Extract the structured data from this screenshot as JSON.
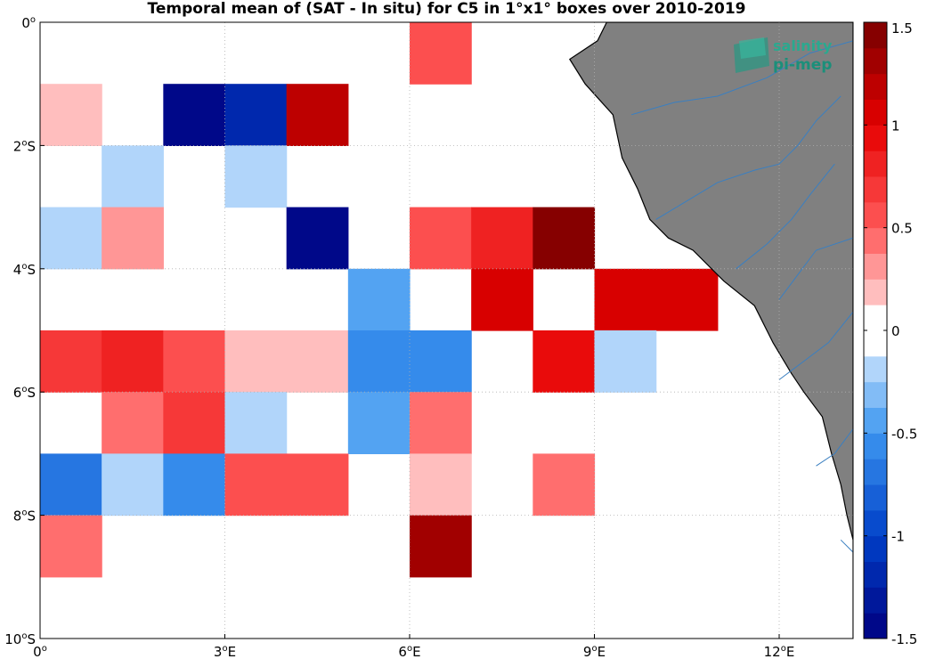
{
  "title": "Temporal mean of (SAT - In situ) for C5 in 1°x1° boxes over 2010-2019",
  "logo": {
    "line1": "salinity",
    "line2": "pi-mep"
  },
  "map": {
    "lon_range": [
      0,
      13.2
    ],
    "lat_range": [
      -10,
      0
    ],
    "land_color": "#808080",
    "river_color": "#3a7fc1",
    "grid": true,
    "x_ticks": [
      {
        "value": 0,
        "deg": "0",
        "hemi": ""
      },
      {
        "value": 3,
        "deg": "3",
        "hemi": "E"
      },
      {
        "value": 6,
        "deg": "6",
        "hemi": "E"
      },
      {
        "value": 9,
        "deg": "9",
        "hemi": "E"
      },
      {
        "value": 12,
        "deg": "12",
        "hemi": "E"
      }
    ],
    "y_ticks": [
      {
        "value": 0,
        "deg": "0",
        "hemi": ""
      },
      {
        "value": -2,
        "deg": "2",
        "hemi": "S"
      },
      {
        "value": -4,
        "deg": "4",
        "hemi": "S"
      },
      {
        "value": -6,
        "deg": "6",
        "hemi": "S"
      },
      {
        "value": -8,
        "deg": "8",
        "hemi": "S"
      },
      {
        "value": -10,
        "deg": "10",
        "hemi": "S"
      }
    ],
    "coastline": [
      [
        13.2,
        0
      ],
      [
        9.2,
        0
      ],
      [
        9.05,
        -0.3
      ],
      [
        8.6,
        -0.6
      ],
      [
        8.85,
        -1.0
      ],
      [
        9.3,
        -1.5
      ],
      [
        9.45,
        -2.2
      ],
      [
        9.7,
        -2.7
      ],
      [
        9.9,
        -3.2
      ],
      [
        10.2,
        -3.5
      ],
      [
        10.6,
        -3.7
      ],
      [
        11.1,
        -4.2
      ],
      [
        11.6,
        -4.6
      ],
      [
        11.9,
        -5.2
      ],
      [
        12.2,
        -5.7
      ],
      [
        12.4,
        -6.0
      ],
      [
        12.7,
        -6.4
      ],
      [
        12.85,
        -7.0
      ],
      [
        13.0,
        -7.5
      ],
      [
        13.1,
        -8.0
      ],
      [
        13.2,
        -8.4
      ]
    ],
    "rivers": [
      [
        [
          13.2,
          -0.3
        ],
        [
          12.5,
          -0.5
        ],
        [
          11.8,
          -0.9
        ],
        [
          11.0,
          -1.2
        ],
        [
          10.3,
          -1.3
        ],
        [
          9.6,
          -1.5
        ]
      ],
      [
        [
          13.0,
          -1.2
        ],
        [
          12.6,
          -1.6
        ],
        [
          12.3,
          -2.0
        ],
        [
          12.0,
          -2.3
        ],
        [
          11.6,
          -2.4
        ],
        [
          11.0,
          -2.6
        ],
        [
          10.5,
          -2.9
        ],
        [
          10.0,
          -3.2
        ]
      ],
      [
        [
          12.9,
          -2.3
        ],
        [
          12.5,
          -2.8
        ],
        [
          12.2,
          -3.2
        ],
        [
          11.8,
          -3.6
        ],
        [
          11.3,
          -4.0
        ]
      ],
      [
        [
          13.2,
          -3.5
        ],
        [
          12.6,
          -3.7
        ],
        [
          12.3,
          -4.1
        ],
        [
          12.0,
          -4.5
        ]
      ],
      [
        [
          13.2,
          -4.7
        ],
        [
          12.8,
          -5.2
        ],
        [
          12.4,
          -5.5
        ],
        [
          12.0,
          -5.8
        ]
      ],
      [
        [
          13.2,
          -6.6
        ],
        [
          12.9,
          -7.0
        ],
        [
          12.6,
          -7.2
        ]
      ],
      [
        [
          13.2,
          -8.6
        ],
        [
          13.0,
          -8.4
        ]
      ]
    ]
  },
  "chart_data": {
    "type": "heatmap",
    "title": "Temporal mean of (SAT - In situ) for C5 in 1°x1° boxes over 2010-2019",
    "colorbar": {
      "range": [
        -1.5,
        1.5
      ],
      "ticks": [
        {
          "value": 1.5,
          "label": "1.5"
        },
        {
          "value": 1,
          "label": "1"
        },
        {
          "value": 0.5,
          "label": "0.5"
        },
        {
          "value": 0,
          "label": "0"
        },
        {
          "value": -0.5,
          "label": "-0.5"
        },
        {
          "value": -1,
          "label": "-1"
        },
        {
          "value": -1.5,
          "label": "-1.5"
        }
      ]
    },
    "cells": [
      {
        "lon": 6,
        "lat": 0,
        "value": 0.55
      },
      {
        "lon": 0,
        "lat": -1,
        "value": 0.15
      },
      {
        "lon": 2,
        "lat": -1,
        "value": -1.45
      },
      {
        "lon": 3,
        "lat": -1,
        "value": -1.25
      },
      {
        "lon": 4,
        "lat": -1,
        "value": 1.15
      },
      {
        "lon": 1,
        "lat": -2,
        "value": -0.25
      },
      {
        "lon": 3,
        "lat": -2,
        "value": -0.25
      },
      {
        "lon": 0,
        "lat": -3,
        "value": -0.25
      },
      {
        "lon": 1,
        "lat": -3,
        "value": 0.25
      },
      {
        "lon": 4,
        "lat": -3,
        "value": -1.45
      },
      {
        "lon": 6,
        "lat": -3,
        "value": 0.55
      },
      {
        "lon": 7,
        "lat": -3,
        "value": 0.85
      },
      {
        "lon": 8,
        "lat": -3,
        "value": 1.45
      },
      {
        "lon": 5,
        "lat": -4,
        "value": -0.45
      },
      {
        "lon": 7,
        "lat": -4,
        "value": 1.05
      },
      {
        "lon": 9,
        "lat": -4,
        "value": 1.05
      },
      {
        "lon": 10,
        "lat": -4,
        "value": 1.05
      },
      {
        "lon": 0,
        "lat": -5,
        "value": 0.65
      },
      {
        "lon": 1,
        "lat": -5,
        "value": 0.75
      },
      {
        "lon": 2,
        "lat": -5,
        "value": 0.55
      },
      {
        "lon": 3,
        "lat": -5,
        "value": 0.15
      },
      {
        "lon": 4,
        "lat": -5,
        "value": 0.15
      },
      {
        "lon": 5,
        "lat": -5,
        "value": -0.55
      },
      {
        "lon": 6,
        "lat": -5,
        "value": -0.55
      },
      {
        "lon": 8,
        "lat": -5,
        "value": 0.95
      },
      {
        "lon": 9,
        "lat": -5,
        "value": -0.25
      },
      {
        "lon": 1,
        "lat": -6,
        "value": 0.4
      },
      {
        "lon": 2,
        "lat": -6,
        "value": 0.65
      },
      {
        "lon": 3,
        "lat": -6,
        "value": -0.25
      },
      {
        "lon": 5,
        "lat": -6,
        "value": -0.45
      },
      {
        "lon": 6,
        "lat": -6,
        "value": 0.4
      },
      {
        "lon": 0,
        "lat": -7,
        "value": -0.75
      },
      {
        "lon": 1,
        "lat": -7,
        "value": -0.25
      },
      {
        "lon": 2,
        "lat": -7,
        "value": -0.55
      },
      {
        "lon": 3,
        "lat": -7,
        "value": 0.55
      },
      {
        "lon": 4,
        "lat": -7,
        "value": 0.55
      },
      {
        "lon": 6,
        "lat": -7,
        "value": 0.15
      },
      {
        "lon": 8,
        "lat": -7,
        "value": 0.4
      },
      {
        "lon": 0,
        "lat": -8,
        "value": 0.4
      },
      {
        "lon": 6,
        "lat": -8,
        "value": 1.25
      }
    ]
  }
}
